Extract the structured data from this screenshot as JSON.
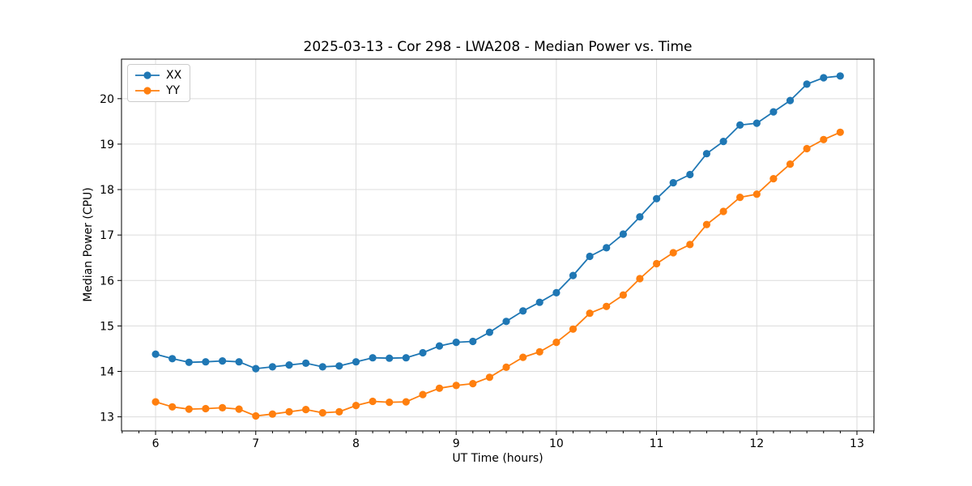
{
  "chart_data": {
    "type": "line",
    "title": "2025-03-13 - Cor 298 - LWA208 - Median Power vs. Time",
    "xlabel": "UT Time (hours)",
    "ylabel": "Median Power (CPU)",
    "xlim": [
      5.66,
      13.17
    ],
    "ylim": [
      12.69,
      20.87
    ],
    "x_ticks": [
      6,
      7,
      8,
      9,
      10,
      11,
      12,
      13
    ],
    "y_ticks": [
      13,
      14,
      15,
      16,
      17,
      18,
      19,
      20
    ],
    "x_minor_step": 0.16667,
    "grid": true,
    "grid_color": "#dcdcdc",
    "legend_position": "upper left",
    "x": [
      6.0,
      6.167,
      6.333,
      6.5,
      6.667,
      6.833,
      7.0,
      7.167,
      7.333,
      7.5,
      7.667,
      7.833,
      8.0,
      8.167,
      8.333,
      8.5,
      8.667,
      8.833,
      9.0,
      9.167,
      9.333,
      9.5,
      9.667,
      9.833,
      10.0,
      10.167,
      10.333,
      10.5,
      10.667,
      10.833,
      11.0,
      11.167,
      11.333,
      11.5,
      11.667,
      11.833,
      12.0,
      12.167,
      12.333,
      12.5,
      12.667,
      12.833
    ],
    "series": [
      {
        "name": "XX",
        "color": "#1f77b4",
        "values": [
          14.38,
          14.28,
          14.2,
          14.21,
          14.23,
          14.21,
          14.06,
          14.1,
          14.14,
          14.18,
          14.1,
          14.12,
          14.21,
          14.3,
          14.29,
          14.3,
          14.41,
          14.56,
          14.64,
          14.66,
          14.86,
          15.1,
          15.33,
          15.52,
          15.73,
          16.11,
          16.53,
          16.72,
          17.02,
          17.4,
          17.8,
          18.15,
          18.33,
          18.79,
          19.06,
          19.42,
          19.46,
          19.71,
          19.96,
          20.32,
          20.46,
          20.5
        ]
      },
      {
        "name": "YY",
        "color": "#ff7f0e",
        "values": [
          13.33,
          13.22,
          13.17,
          13.18,
          13.2,
          13.17,
          13.02,
          13.06,
          13.11,
          13.16,
          13.09,
          13.11,
          13.25,
          13.34,
          13.32,
          13.33,
          13.49,
          13.63,
          13.69,
          13.73,
          13.87,
          14.09,
          14.31,
          14.43,
          14.64,
          14.93,
          15.28,
          15.43,
          15.68,
          16.04,
          16.37,
          16.61,
          16.79,
          17.23,
          17.52,
          17.83,
          17.9,
          18.24,
          18.56,
          18.9,
          19.1,
          19.26
        ]
      }
    ]
  }
}
